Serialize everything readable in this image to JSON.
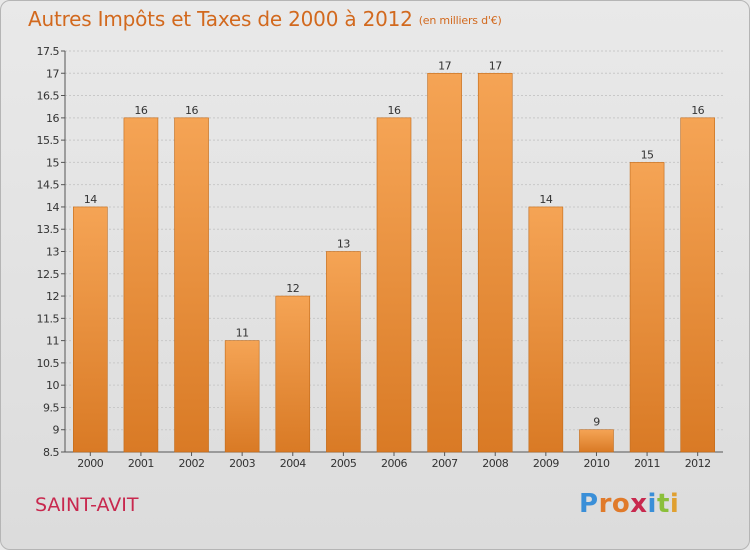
{
  "title": {
    "main": "Autres Impôts et Taxes de 2000 à 2012",
    "unit": "(en milliers d'€)"
  },
  "commune": "SAINT-AVIT",
  "logo": {
    "text": "Proxiti",
    "letters": [
      {
        "char": "P",
        "color": "#3a8fd8"
      },
      {
        "char": "r",
        "color": "#e07a2a"
      },
      {
        "char": "o",
        "color": "#e07a2a"
      },
      {
        "char": "x",
        "color": "#c8284e"
      },
      {
        "char": "i",
        "color": "#3a8fd8"
      },
      {
        "char": "t",
        "color": "#8bbf3a"
      },
      {
        "char": "i",
        "color": "#e0a030"
      }
    ]
  },
  "colors": {
    "bar_top": "#f5a455",
    "bar_bottom": "#d97a25",
    "bar_edge": "#c06a1a",
    "grid": "#c8c8c8",
    "axis": "#555555",
    "title": "#d2691e",
    "commune": "#c8284e"
  },
  "chart_data": {
    "type": "bar",
    "categories": [
      "2000",
      "2001",
      "2002",
      "2003",
      "2004",
      "2005",
      "2006",
      "2007",
      "2008",
      "2009",
      "2010",
      "2011",
      "2012"
    ],
    "values": [
      14,
      16,
      16,
      11,
      12,
      13,
      16,
      17,
      17,
      14,
      9,
      15,
      16
    ],
    "data_labels": [
      "14",
      "16",
      "16",
      "11",
      "12",
      "13",
      "16",
      "17",
      "17",
      "14",
      "9",
      "15",
      "16"
    ],
    "ylim": [
      8.5,
      17.5
    ],
    "yticks": [
      "8.5",
      "9",
      "9.5",
      "10",
      "10.5",
      "11",
      "11.5",
      "12",
      "12.5",
      "13",
      "13.5",
      "14",
      "14.5",
      "15",
      "15.5",
      "16",
      "16.5",
      "17",
      "17.5"
    ],
    "grid": true,
    "title": "Autres Impôts et Taxes de 2000 à 2012",
    "xlabel": "",
    "ylabel": ""
  }
}
